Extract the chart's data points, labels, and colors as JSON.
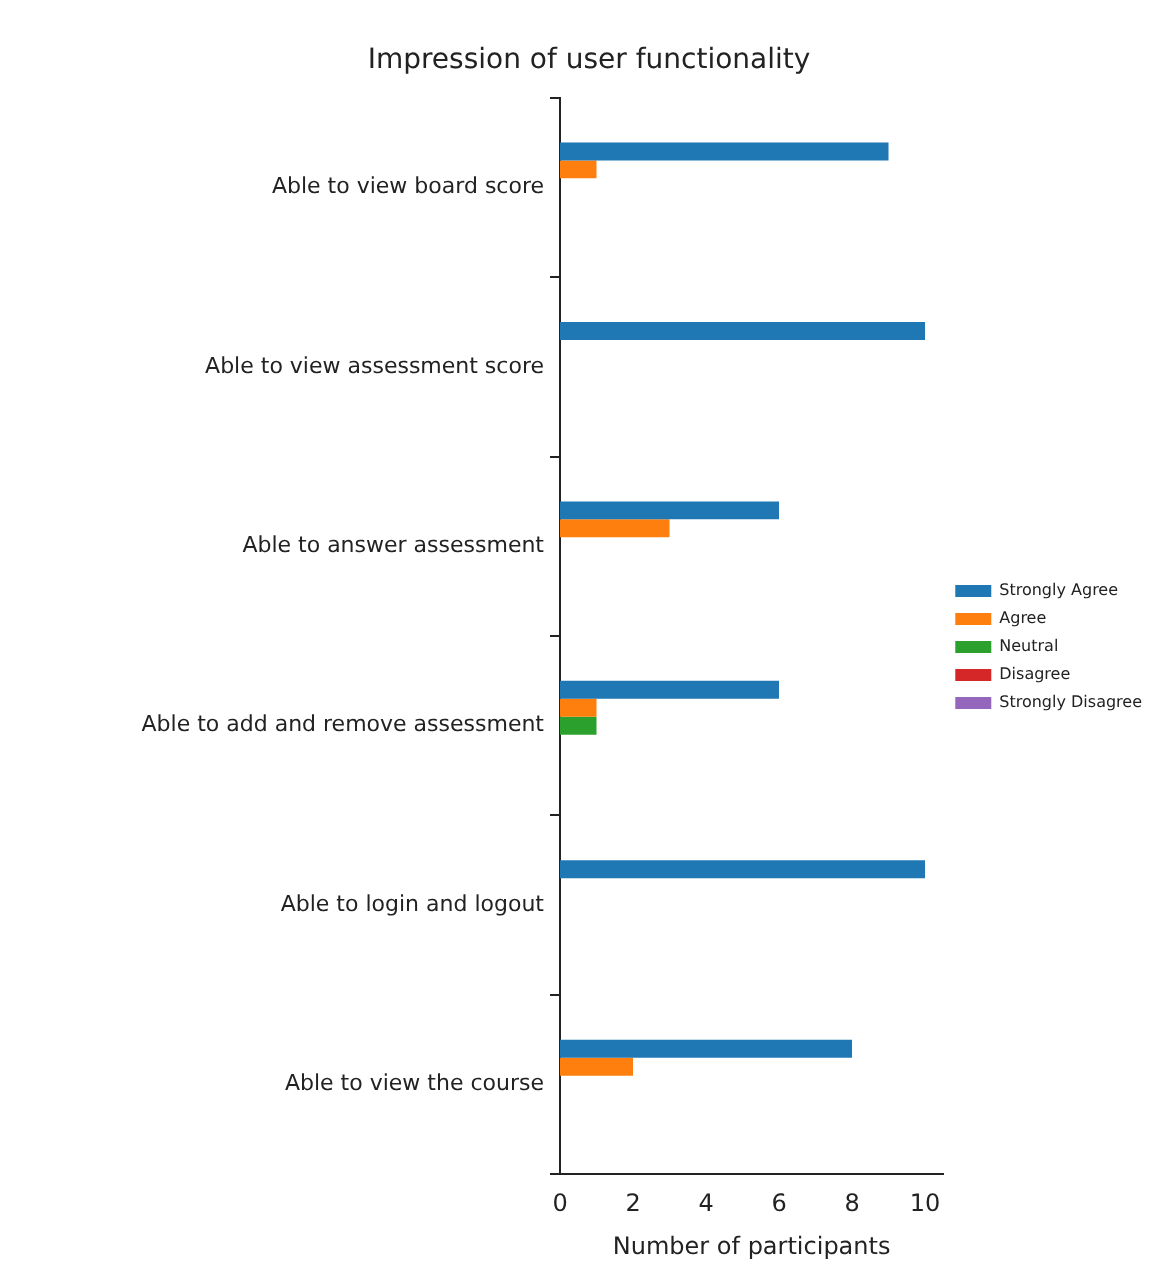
{
  "chart_data": {
    "type": "bar",
    "orientation": "horizontal",
    "title": "Impression of user functionality",
    "xlabel": "Number of participants",
    "categories": [
      "Able to view board score",
      "Able to view assessment score",
      "Able to answer assessment",
      "Able to add and remove assessment",
      "Able to login and logout",
      "Able to view the course"
    ],
    "series": [
      {
        "name": "Strongly Agree",
        "color": "#1f77b4",
        "values": [
          9,
          10,
          6,
          6,
          10,
          8
        ]
      },
      {
        "name": "Agree",
        "color": "#ff7f0e",
        "values": [
          1,
          0,
          3,
          1,
          0,
          2
        ]
      },
      {
        "name": "Neutral",
        "color": "#2ca02c",
        "values": [
          0,
          0,
          0,
          1,
          0,
          0
        ]
      },
      {
        "name": "Disagree",
        "color": "#d62728",
        "values": [
          0,
          0,
          0,
          0,
          0,
          0
        ]
      },
      {
        "name": "Strongly Disagree",
        "color": "#9467bd",
        "values": [
          0,
          0,
          0,
          0,
          0,
          0
        ]
      }
    ],
    "xlim": [
      0,
      10.5
    ],
    "xticks": [
      0,
      2,
      4,
      6,
      8,
      10
    ],
    "grid": false,
    "legend": "right"
  }
}
